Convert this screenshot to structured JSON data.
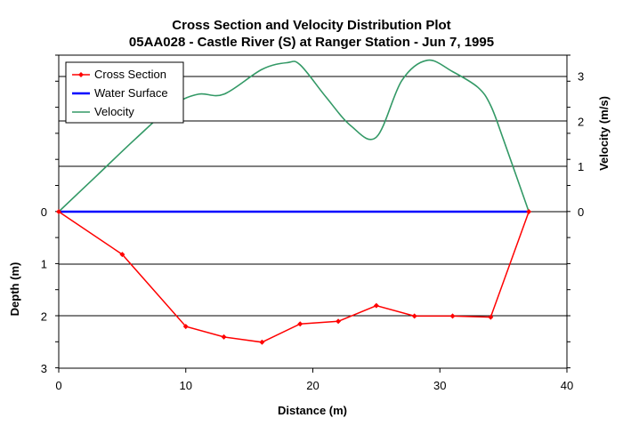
{
  "chart_data": {
    "type": "line",
    "title": "Cross Section and Velocity Distribution Plot",
    "subtitle": "05AA028 - Castle River (S) at Ranger Station - Jun 7, 1995",
    "xlabel": "Distance (m)",
    "ylabel_left": "Depth (m)",
    "ylabel_right": "Velocity (m/s)",
    "xlim": [
      0,
      40
    ],
    "x_ticks": [
      0,
      10,
      20,
      30,
      40
    ],
    "depth_ticks": [
      0,
      1,
      2,
      3
    ],
    "velocity_ticks": [
      0,
      1,
      2,
      3
    ],
    "grid": true,
    "legend_position": "top-left",
    "series": [
      {
        "name": "Cross Section",
        "color": "#ff0000",
        "marker": "diamond",
        "axis": "depth",
        "x": [
          0,
          5,
          10,
          13,
          16,
          19,
          22,
          25,
          28,
          31,
          34,
          37
        ],
        "y": [
          0,
          0.82,
          2.2,
          2.4,
          2.5,
          2.15,
          2.1,
          1.8,
          2.0,
          2.0,
          2.02,
          0
        ]
      },
      {
        "name": "Water Surface",
        "color": "#0000ff",
        "axis": "depth",
        "x": [
          0,
          37
        ],
        "y": [
          0,
          0
        ]
      },
      {
        "name": "Velocity",
        "color": "#339966",
        "axis": "velocity",
        "x": [
          0,
          3,
          6,
          9,
          11,
          13,
          16,
          18,
          19,
          21,
          23,
          25,
          27,
          29,
          31,
          33,
          34,
          35,
          37
        ],
        "y": [
          0,
          0.8,
          1.6,
          2.35,
          2.6,
          2.6,
          3.15,
          3.3,
          3.25,
          2.55,
          1.9,
          1.65,
          2.9,
          3.35,
          3.1,
          2.75,
          2.35,
          1.6,
          0
        ]
      }
    ]
  }
}
